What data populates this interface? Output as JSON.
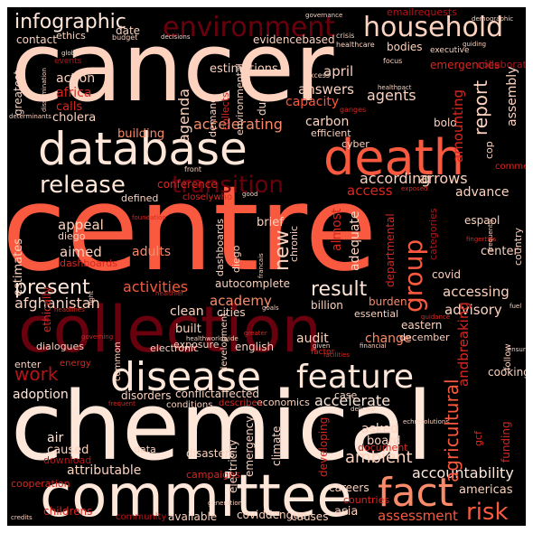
{
  "background": "#000000",
  "palette": {
    "light": "#fdd3bf",
    "pale": "#fee6d9",
    "salmon": "#fb8a68",
    "coral": "#f8593f",
    "red": "#d9271f",
    "crimson": "#b41419",
    "dark": "#68000d"
  },
  "words": [
    {
      "id": "cancer",
      "text": "cancer",
      "color": "#fdd3bf"
    },
    {
      "id": "centre",
      "text": "centre",
      "color": "#f8593f"
    },
    {
      "id": "chemical",
      "text": "chemical",
      "color": "#fee6d9"
    },
    {
      "id": "collection",
      "text": "collection",
      "color": "#68000d"
    },
    {
      "id": "committee",
      "text": "committee",
      "color": "#fee6d9"
    },
    {
      "id": "database",
      "text": "database",
      "color": "#fee6d9"
    },
    {
      "id": "death",
      "text": "death",
      "color": "#f8593f"
    },
    {
      "id": "environment",
      "text": "environment",
      "color": "#68000d"
    },
    {
      "id": "household",
      "text": "household",
      "color": "#fdd3bf"
    },
    {
      "id": "infographic",
      "text": "infographic",
      "color": "#fee6d9"
    },
    {
      "id": "disease",
      "text": "disease",
      "color": "#fee6d9"
    },
    {
      "id": "feature",
      "text": "feature",
      "color": "#fee6d9"
    },
    {
      "id": "fact",
      "text": "fact",
      "color": "#fb8a68"
    },
    {
      "id": "risk",
      "text": "risk",
      "color": "#f8593f"
    },
    {
      "id": "transition",
      "text": "transition",
      "color": "#68000d"
    },
    {
      "id": "release",
      "text": "release",
      "color": "#fee6d9"
    },
    {
      "id": "group",
      "text": "group",
      "color": "#f8593f"
    },
    {
      "id": "work",
      "text": "work",
      "color": "#b41419"
    },
    {
      "id": "present",
      "text": "present",
      "color": "#fee6d9"
    },
    {
      "id": "result",
      "text": "result",
      "color": "#fee6d9"
    },
    {
      "id": "accelerating",
      "text": "accelerating",
      "color": "#fb8a68"
    },
    {
      "id": "afghanistan",
      "text": "afghanistan",
      "color": "#fdd3bf"
    },
    {
      "id": "academy",
      "text": "academy",
      "color": "#fb8a68"
    },
    {
      "id": "activities",
      "text": "activities",
      "color": "#f8593f"
    },
    {
      "id": "accelerate",
      "text": "accelerate",
      "color": "#fee6d9"
    },
    {
      "id": "ambient",
      "text": "ambient",
      "color": "#fdd3bf"
    },
    {
      "id": "accountability",
      "text": "accountability",
      "color": "#fee6d9"
    },
    {
      "id": "americas",
      "text": "americas",
      "color": "#fdd3bf"
    },
    {
      "id": "assessment",
      "text": "assessment",
      "color": "#f8593f"
    },
    {
      "id": "attributable",
      "text": "attributable",
      "color": "#fdd3bf"
    },
    {
      "id": "advisory",
      "text": "advisory",
      "color": "#fdd3bf"
    },
    {
      "id": "accessing",
      "text": "accessing",
      "color": "#fdd3bf"
    },
    {
      "id": "according",
      "text": "according",
      "color": "#fdd3bf"
    },
    {
      "id": "arrows",
      "text": "arrows",
      "color": "#fdd3bf"
    },
    {
      "id": "advance",
      "text": "advance",
      "color": "#fdd3bf"
    },
    {
      "id": "access",
      "text": "access",
      "color": "#d9271f"
    },
    {
      "id": "appeal",
      "text": "appeal",
      "color": "#fdd3bf"
    },
    {
      "id": "aimed",
      "text": "aimed",
      "color": "#fdd3bf"
    },
    {
      "id": "adults",
      "text": "adults",
      "color": "#fb8a68"
    },
    {
      "id": "new",
      "text": "new",
      "color": "#fdd3bf"
    },
    {
      "id": "action",
      "text": "action",
      "color": "#fdd3bf"
    },
    {
      "id": "africa",
      "text": "africa",
      "color": "#d9271f"
    },
    {
      "id": "calls",
      "text": "calls",
      "color": "#d9271f"
    },
    {
      "id": "cholera",
      "text": "cholera",
      "color": "#fdd3bf"
    },
    {
      "id": "building",
      "text": "building",
      "color": "#fb8a68"
    },
    {
      "id": "april",
      "text": "april",
      "color": "#fdd3bf"
    },
    {
      "id": "answers",
      "text": "answers",
      "color": "#fdd3bf"
    },
    {
      "id": "capacity",
      "text": "capacity",
      "color": "#f8593f"
    },
    {
      "id": "agents",
      "text": "agents",
      "color": "#fdd3bf"
    },
    {
      "id": "report",
      "text": "report",
      "color": "#fdd3bf"
    },
    {
      "id": "assembly",
      "text": "assembly",
      "color": "#fdd3bf"
    },
    {
      "id": "amounting",
      "text": "amounting",
      "color": "#d9271f"
    },
    {
      "id": "agenda",
      "text": "agenda",
      "color": "#fdd3bf"
    },
    {
      "id": "adoption",
      "text": "adoption",
      "color": "#fee6d9"
    },
    {
      "id": "air",
      "text": "air",
      "color": "#fee6d9"
    },
    {
      "id": "caused",
      "text": "caused",
      "color": "#fdd3bf"
    },
    {
      "id": "download",
      "text": "download",
      "color": "#b41419"
    },
    {
      "id": "cooperation",
      "text": "cooperation",
      "color": "#d9271f"
    },
    {
      "id": "childrens",
      "text": "childrens",
      "color": "#d9271f"
    },
    {
      "id": "community",
      "text": "community",
      "color": "#b41419"
    },
    {
      "id": "available",
      "text": "available",
      "color": "#fdd3bf"
    },
    {
      "id": "coviddengue",
      "text": "coviddengue",
      "color": "#fdd3bf"
    },
    {
      "id": "causes",
      "text": "causes",
      "color": "#fdd3bf"
    },
    {
      "id": "asia",
      "text": "asia",
      "color": "#fdd3bf"
    },
    {
      "id": "careers",
      "text": "careers",
      "color": "#fdd3bf"
    },
    {
      "id": "countries",
      "text": "countries",
      "color": "#d9271f"
    },
    {
      "id": "asked",
      "text": "asked",
      "color": "#fdd3bf"
    },
    {
      "id": "board",
      "text": "board",
      "color": "#fdd3bf"
    },
    {
      "id": "document",
      "text": "document",
      "color": "#d9271f"
    },
    {
      "id": "agricultural",
      "text": "agricultural",
      "color": "#f8593f"
    },
    {
      "id": "andbreaking",
      "text": "andbreaking",
      "color": "#d9271f"
    },
    {
      "id": "economics",
      "text": "economics",
      "color": "#fdd3bf"
    },
    {
      "id": "case",
      "text": "case",
      "color": "#fdd3bf"
    },
    {
      "id": "cooking",
      "text": "cooking",
      "color": "#fdd3bf"
    },
    {
      "id": "audit",
      "text": "audit",
      "color": "#fdd3bf"
    },
    {
      "id": "change",
      "text": "change",
      "color": "#fb8a68"
    },
    {
      "id": "english",
      "text": "english",
      "color": "#fdd3bf"
    },
    {
      "id": "eastern",
      "text": "eastern",
      "color": "#fdd3bf"
    },
    {
      "id": "december",
      "text": "december",
      "color": "#fdd3bf"
    },
    {
      "id": "burden",
      "text": "burden",
      "color": "#fb8a68"
    },
    {
      "id": "billion",
      "text": "billion",
      "color": "#fdd3bf"
    },
    {
      "id": "essential",
      "text": "essential",
      "color": "#fdd3bf"
    },
    {
      "id": "departmental",
      "text": "departmental",
      "color": "#d9271f"
    },
    {
      "id": "center",
      "text": "center",
      "color": "#fdd3bf"
    },
    {
      "id": "espaol",
      "text": "espaol",
      "color": "#fdd3bf"
    },
    {
      "id": "covid",
      "text": "covid",
      "color": "#fdd3bf"
    },
    {
      "id": "categories",
      "text": "categories",
      "color": "#b41419"
    },
    {
      "id": "adequate",
      "text": "adequate",
      "color": "#fdd3bf"
    },
    {
      "id": "almost",
      "text": "almost",
      "color": "#d9271f"
    },
    {
      "id": "brief",
      "text": "brief",
      "color": "#fdd3bf"
    },
    {
      "id": "chronic",
      "text": "chronic",
      "color": "#fdd3bf"
    },
    {
      "id": "clean",
      "text": "clean",
      "color": "#fdd3bf"
    },
    {
      "id": "built",
      "text": "built",
      "color": "#fdd3bf"
    },
    {
      "id": "cities",
      "text": "cities",
      "color": "#fdd3bf"
    },
    {
      "id": "autocomplete",
      "text": "autocomplete",
      "color": "#fdd3bf"
    },
    {
      "id": "disorders",
      "text": "disorders",
      "color": "#fdd3bf"
    },
    {
      "id": "conflictaffected",
      "text": "conflictaffected",
      "color": "#fdd3bf"
    },
    {
      "id": "conditions",
      "text": "conditions",
      "color": "#fdd3bf"
    },
    {
      "id": "describes",
      "text": "describes",
      "color": "#d9271f"
    },
    {
      "id": "disasters",
      "text": "disasters",
      "color": "#fdd3bf"
    },
    {
      "id": "climate",
      "text": "climate",
      "color": "#fdd3bf"
    },
    {
      "id": "emergency",
      "text": "emergency",
      "color": "#fdd3bf"
    },
    {
      "id": "electricity",
      "text": "electricity",
      "color": "#fdd3bf"
    },
    {
      "id": "developing",
      "text": "developing",
      "color": "#d9271f"
    },
    {
      "id": "campaigns",
      "text": "campaigns",
      "color": "#fdd3bf"
    },
    {
      "id": "data",
      "text": "data",
      "color": "#d9271f"
    },
    {
      "id": "enter",
      "text": "enter",
      "color": "#fdd3bf"
    },
    {
      "id": "dialogues",
      "text": "dialogues",
      "color": "#fdd3bf"
    },
    {
      "id": "energy",
      "text": "energy",
      "color": "#fdd3bf"
    },
    {
      "id": "electronic",
      "text": "electronic",
      "color": "#d9271f"
    },
    {
      "id": "common",
      "text": "common",
      "color": "#fdd3bf"
    },
    {
      "id": "development",
      "text": "development",
      "color": "#fdd3bf"
    },
    {
      "id": "ethically",
      "text": "ethically",
      "color": "#fdd3bf"
    },
    {
      "id": "diego",
      "text": "diego",
      "color": "#d9271f"
    },
    {
      "id": "dashboards",
      "text": "dashboards",
      "color": "#fdd3bf"
    },
    {
      "id": "estimates",
      "text": "estimates",
      "color": "#fdd3bf"
    },
    {
      "id": "conference",
      "text": "conference",
      "color": "#fdd3bf"
    },
    {
      "id": "defined",
      "text": "defined",
      "color": "#d9271f"
    },
    {
      "id": "closelywho",
      "text": "closelywho",
      "color": "#fdd3bf"
    },
    {
      "id": "carbon",
      "text": "carbon",
      "color": "#d9271f"
    },
    {
      "id": "efficient",
      "text": "efficient",
      "color": "#fdd3bf"
    },
    {
      "id": "cyber",
      "text": "cyber",
      "color": "#d9271f"
    },
    {
      "id": "bold",
      "text": "bold",
      "color": "#fdd3bf"
    },
    {
      "id": "cop",
      "text": "cop",
      "color": "#fdd3bf"
    },
    {
      "id": "commentaries",
      "text": "commentaries",
      "color": "#fdd3bf"
    },
    {
      "id": "country",
      "text": "country",
      "color": "#fdd3bf"
    },
    {
      "id": "estimations",
      "text": "estimations",
      "color": "#fdd3bf"
    },
    {
      "id": "demand",
      "text": "demand",
      "color": "#d9271f"
    },
    {
      "id": "environmental",
      "text": "environmental",
      "color": "#fdd3bf"
    },
    {
      "id": "due",
      "text": "due",
      "color": "#fdd3bf"
    },
    {
      "id": "collects",
      "text": "collects",
      "color": "#fdd3bf"
    },
    {
      "id": "evidencebased",
      "text": "evidencebased",
      "color": "#fdd3bf"
    },
    {
      "id": "bodies",
      "text": "bodies",
      "color": "#fdd3bf"
    },
    {
      "id": "emergencies",
      "text": "emergencies",
      "color": "#d9271f"
    },
    {
      "id": "contact",
      "text": "contact",
      "color": "#fdd3bf"
    },
    {
      "id": "ethics",
      "text": "ethics",
      "color": "#fdd3bf"
    },
    {
      "id": "date",
      "text": "date",
      "color": "#d9271f"
    },
    {
      "id": "budget",
      "text": "budget",
      "color": "#fdd3bf"
    },
    {
      "id": "decisions",
      "text": "decisions",
      "color": "#fdd3bf"
    },
    {
      "id": "crisis",
      "text": "crisis",
      "color": "#fdd3bf"
    },
    {
      "id": "healthcare",
      "text": "healthcare",
      "color": "#fdd3bf"
    },
    {
      "id": "emailrequests",
      "text": "emailrequests",
      "color": "#fdd3bf"
    },
    {
      "id": "executive",
      "text": "executive",
      "color": "#fdd3bf"
    },
    {
      "id": "guiding",
      "text": "guiding",
      "color": "#fdd3bf"
    },
    {
      "id": "collaborating",
      "text": "collaborating",
      "color": "#b41419"
    },
    {
      "id": "focus",
      "text": "focus",
      "color": "#fdd3bf"
    },
    {
      "id": "greatest",
      "text": "greatest",
      "color": "#fdd3bf"
    },
    {
      "id": "events",
      "text": "events",
      "color": "#b41419"
    },
    {
      "id": "global",
      "text": "global",
      "color": "#fdd3bf"
    },
    {
      "id": "dissemination",
      "text": "dissemination",
      "color": "#fdd3bf"
    },
    {
      "id": "determinants",
      "text": "determinants",
      "color": "#b41419"
    },
    {
      "id": "excess",
      "text": "excess",
      "color": "#fdd3bf"
    },
    {
      "id": "healthpact",
      "text": "healthpact",
      "color": "#fdd3bf"
    },
    {
      "id": "ganges",
      "text": "ganges",
      "color": "#fdd3bf"
    },
    {
      "id": "front",
      "text": "front",
      "color": "#fdd3bf"
    },
    {
      "id": "good",
      "text": "good",
      "color": "#fdd3bf"
    },
    {
      "id": "exposed",
      "text": "exposed",
      "color": "#d9271f"
    },
    {
      "id": "foundation",
      "text": "foundation",
      "color": "#fdd3bf"
    },
    {
      "id": "frequently",
      "text": "frequently",
      "color": "#fdd3bf"
    },
    {
      "id": "fingertips",
      "text": "fingertips",
      "color": "#d9271f"
    },
    {
      "id": "fuel",
      "text": "fuel",
      "color": "#d9271f"
    },
    {
      "id": "francais",
      "text": "francais",
      "color": "#fdd3bf"
    },
    {
      "id": "healthier",
      "text": "healthier",
      "color": "#d9271f"
    },
    {
      "id": "fight",
      "text": "fight",
      "color": "#fdd3bf"
    },
    {
      "id": "headlines",
      "text": "headlines",
      "color": "#fdd3bf"
    },
    {
      "id": "goals",
      "text": "goals",
      "color": "#d9271f"
    },
    {
      "id": "guidance",
      "text": "guidance",
      "color": "#fdd3bf"
    },
    {
      "id": "governing",
      "text": "governing",
      "color": "#d9271f"
    },
    {
      "id": "healthworldwide",
      "text": "healthworldwide",
      "color": "#fdd3bf"
    },
    {
      "id": "greater",
      "text": "greater",
      "color": "#d9271f"
    },
    {
      "id": "given",
      "text": "given",
      "color": "#d9271f"
    },
    {
      "id": "financial",
      "text": "financial",
      "color": "#fdd3bf"
    },
    {
      "id": "factor",
      "text": "factor",
      "color": "#d9271f"
    },
    {
      "id": "follow",
      "text": "follow",
      "color": "#fdd3bf"
    },
    {
      "id": "frequent",
      "text": "frequent",
      "color": "#fdd3bf"
    },
    {
      "id": "delicate",
      "text": "delicate",
      "color": "#d9271f"
    },
    {
      "id": "echresolutions",
      "text": "echresolutions",
      "color": "#fdd3bf"
    },
    {
      "id": "funding",
      "text": "funding",
      "color": "#d9271f"
    },
    {
      "id": "gcf",
      "text": "gcf",
      "color": "#fdd3bf"
    },
    {
      "id": "generation",
      "text": "generation",
      "color": "#fdd3bf"
    },
    {
      "id": "demographic",
      "text": "demographic",
      "color": "#d9271f"
    },
    {
      "id": "credits",
      "text": "credits",
      "color": "#d9271f"
    },
    {
      "id": "exposure",
      "text": "exposure",
      "color": "#fdd3bf"
    },
    {
      "id": "governance",
      "text": "governance",
      "color": "#fdd3bf"
    },
    {
      "id": "facilities",
      "text": "facilities",
      "color": "#fdd3bf"
    },
    {
      "id": "ensuring",
      "text": "ensuring",
      "color": "#fdd3bf"
    },
    {
      "id": "hap",
      "text": "hap",
      "color": "#fdd3bf"
    },
    {
      "id": "ebola",
      "text": "ebola",
      "color": "#d9271f"
    },
    {
      "id": "cause",
      "text": "cause",
      "color": "#fdd3bf"
    }
  ]
}
